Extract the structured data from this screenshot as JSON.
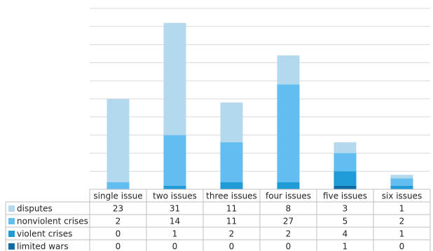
{
  "chart_data": {
    "type": "bar",
    "stacked": true,
    "categories": [
      "single issue",
      "two issues",
      "three issues",
      "four issues",
      "five issues",
      "six issues"
    ],
    "series": [
      {
        "name": "disputes",
        "color": "#b4d9ee",
        "values": [
          23,
          31,
          11,
          8,
          3,
          1
        ]
      },
      {
        "name": "nonviolent crises",
        "color": "#62bdf0",
        "values": [
          2,
          14,
          11,
          27,
          5,
          2
        ]
      },
      {
        "name": "violent crises",
        "color": "#1f9bd7",
        "values": [
          0,
          1,
          2,
          2,
          4,
          1
        ]
      },
      {
        "name": "limited wars",
        "color": "#0c6da6",
        "values": [
          0,
          0,
          0,
          0,
          1,
          0
        ]
      }
    ],
    "ylim": [
      0,
      50
    ],
    "yticks": [
      0,
      5,
      10,
      15,
      20,
      25,
      30,
      35,
      40,
      45,
      50
    ],
    "grid": true
  }
}
